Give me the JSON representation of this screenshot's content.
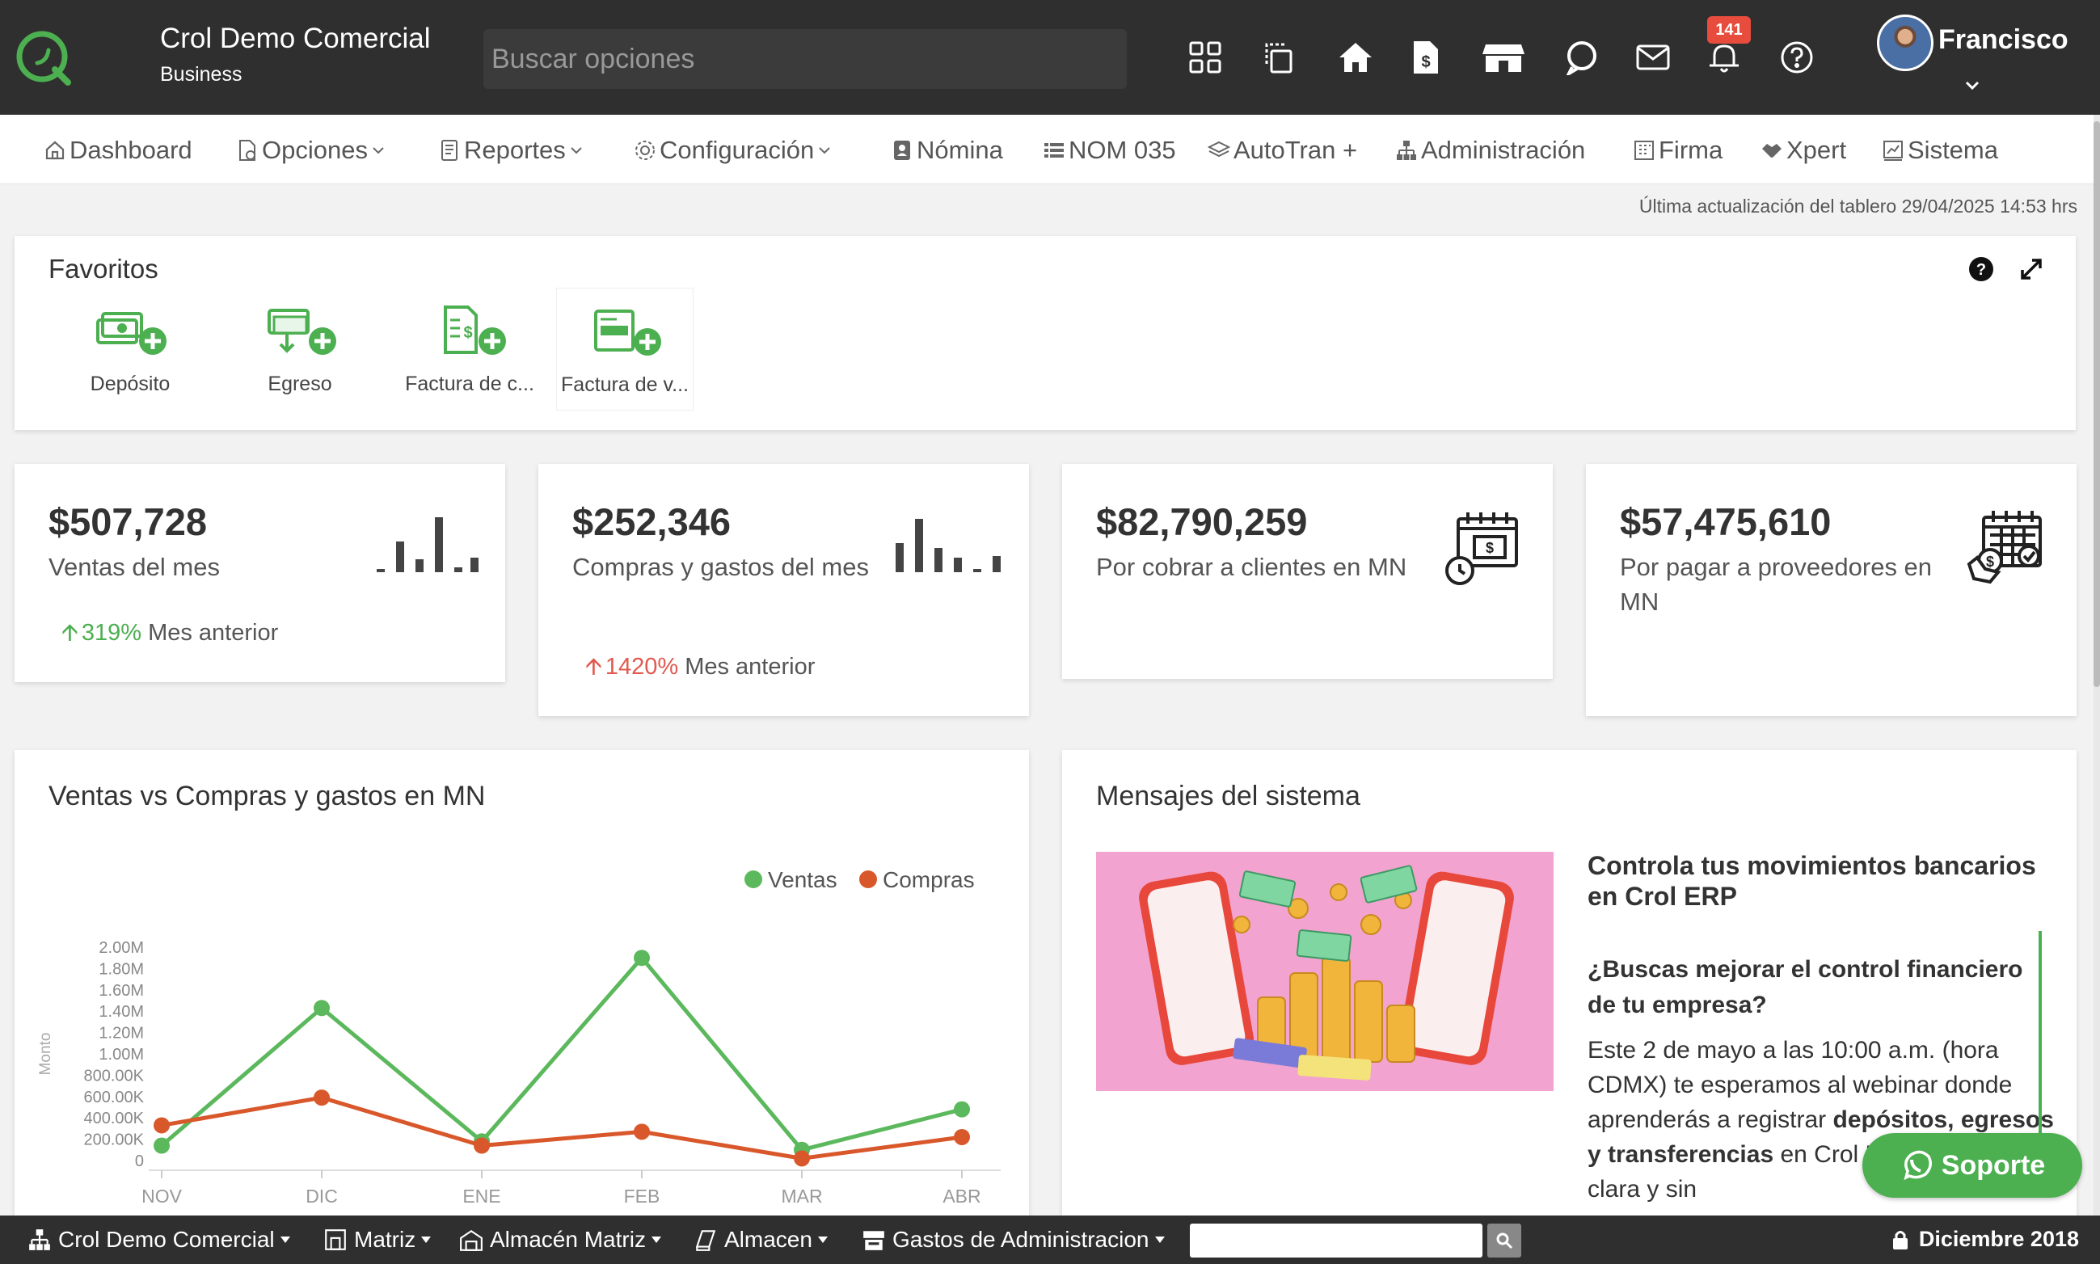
{
  "header": {
    "company": "Crol Demo Comercial",
    "plan": "Business",
    "search_placeholder": "Buscar opciones",
    "notifications_count": "141",
    "user": "Francisco",
    "icons": [
      "apps-grid-icon",
      "copy-select-icon",
      "home-icon",
      "invoice-icon",
      "store-icon",
      "chat-bubble-icon",
      "mail-icon",
      "bell-icon",
      "help-circle-icon"
    ]
  },
  "nav": {
    "items": [
      {
        "label": "Dashboard",
        "icon": "home-outline-icon",
        "dropdown": false
      },
      {
        "label": "Opciones",
        "icon": "document-gear-icon",
        "dropdown": true
      },
      {
        "label": "Reportes",
        "icon": "report-icon",
        "dropdown": true
      },
      {
        "label": "Configuración",
        "icon": "gear-icon",
        "dropdown": true
      },
      {
        "label": "Nómina",
        "icon": "id-card-icon",
        "dropdown": false
      },
      {
        "label": "NOM 035",
        "icon": "list-icon",
        "dropdown": false
      },
      {
        "label": "AutoTran +",
        "icon": "layers-icon",
        "dropdown": false
      },
      {
        "label": "Administración",
        "icon": "sitemap-icon",
        "dropdown": false
      },
      {
        "label": "Firma",
        "icon": "building-icon",
        "dropdown": false
      },
      {
        "label": "Xpert",
        "icon": "handshake-icon",
        "dropdown": false
      },
      {
        "label": "Sistema",
        "icon": "chart-window-icon",
        "dropdown": false
      }
    ]
  },
  "last_update": "Última actualización del tablero 29/04/2025 14:53 hrs",
  "favorites": {
    "title": "Favoritos",
    "items": [
      {
        "label": "Depósito",
        "icon": "money-plus-icon"
      },
      {
        "label": "Egreso",
        "icon": "money-out-plus-icon"
      },
      {
        "label": "Factura de c...",
        "icon": "invoice-plus-icon"
      },
      {
        "label": "Factura de v...",
        "icon": "card-plus-icon"
      }
    ]
  },
  "kpis": [
    {
      "value": "$507,728",
      "label": "Ventas del mes",
      "change": "319%",
      "change_label": "Mes anterior",
      "change_color": "#4caf50",
      "icon": "bar-chart-icon"
    },
    {
      "value": "$252,346",
      "label": "Compras y gastos del mes",
      "change": "1420%",
      "change_label": "Mes anterior",
      "change_color": "#e05a4f",
      "icon": "bar-chart-icon"
    },
    {
      "value": "$82,790,259",
      "label": "Por cobrar a clientes en MN",
      "icon": "calendar-money-clock-icon"
    },
    {
      "value": "$57,475,610",
      "label": "Por pagar a proveedores en MN",
      "icon": "calendar-money-hand-icon"
    }
  ],
  "chart_section": {
    "title": "Ventas vs Compras y gastos en MN"
  },
  "chart_data": {
    "type": "line",
    "categories": [
      "NOV",
      "DIC",
      "ENE",
      "FEB",
      "MAR",
      "ABR"
    ],
    "series": [
      {
        "name": "Ventas",
        "color": "#5cb85c",
        "values": [
          140000,
          1430000,
          180000,
          1900000,
          100000,
          480000
        ]
      },
      {
        "name": "Compras",
        "color": "#d9582b",
        "values": [
          330000,
          590000,
          140000,
          270000,
          20000,
          220000
        ]
      }
    ],
    "yticks": [
      "2.00M",
      "1.80M",
      "1.60M",
      "1.40M",
      "1.20M",
      "1.00M",
      "800.00K",
      "600.00K",
      "400.00K",
      "200.00K",
      "0"
    ],
    "ylim": [
      0,
      2000000
    ],
    "ylabel": "Monto",
    "legend_position": "top-right"
  },
  "messages": {
    "title": "Mensajes del sistema",
    "headline": "Controla tus movimientos bancarios en Crol ERP",
    "question": "¿Buscas mejorar el control financiero de tu empresa?",
    "body_1": "Este 2 de mayo a las 10:00 a.m. (hora CDMX) te esperamos al webinar donde aprenderás a registrar ",
    "body_bold": "depósitos, egresos y transferencias",
    "body_2": " en Crol ERP, de forma clara y sin"
  },
  "support_button": "Soporte",
  "bottom": {
    "company": "Crol Demo Comercial",
    "branch": "Matriz",
    "warehouse_main": "Almacén Matriz",
    "warehouse": "Almacen",
    "expense": "Gastos de Administracion",
    "period": "Diciembre 2018"
  }
}
